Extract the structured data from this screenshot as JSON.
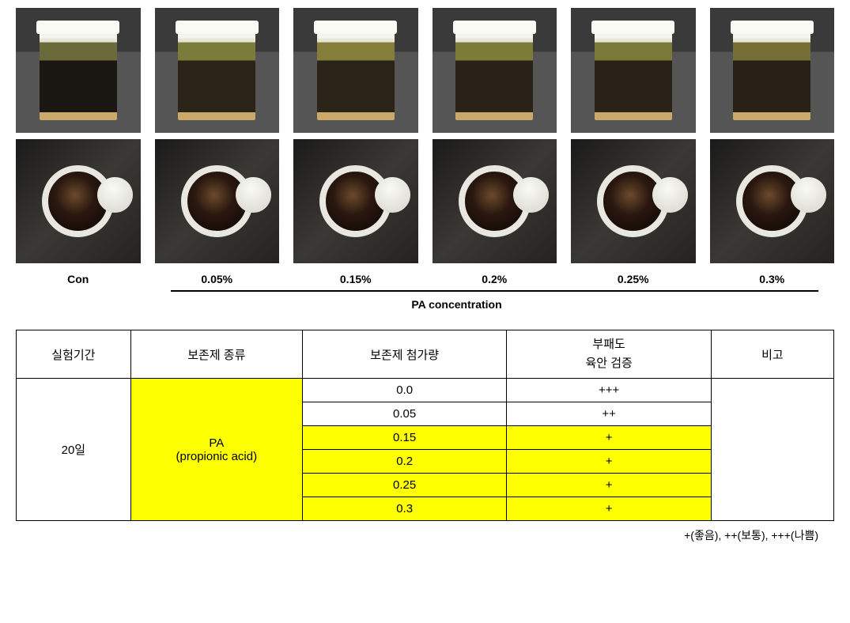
{
  "photo_columns": [
    {
      "label": "Con",
      "liquid_top": "#6a6a3a",
      "liquid_dark": "#1a1612"
    },
    {
      "label": "0.05%",
      "liquid_top": "#7a7c3a",
      "liquid_dark": "#2a2418"
    },
    {
      "label": "0.15%",
      "liquid_top": "#847e3a",
      "liquid_dark": "#2a2418"
    },
    {
      "label": "0.2%",
      "liquid_top": "#7e7a38",
      "liquid_dark": "#2a2218"
    },
    {
      "label": "0.25%",
      "liquid_top": "#7c783a",
      "liquid_dark": "#2a2218"
    },
    {
      "label": "0.3%",
      "liquid_top": "#766e34",
      "liquid_dark": "#282016"
    }
  ],
  "axis_caption": "PA concentration",
  "table": {
    "headers": {
      "period": "실험기간",
      "preservative_type": "보존제 종류",
      "preservative_amount": "보존제 첨가량",
      "decay_header_line1": "부패도",
      "decay_header_line2": "육안 검증",
      "remarks": "비고"
    },
    "period_value": "20일",
    "preservative_value_line1": "PA",
    "preservative_value_line2": "(propionic acid)",
    "rows": [
      {
        "amount": "0.0",
        "decay": "+++",
        "highlight": false
      },
      {
        "amount": "0.05",
        "decay": "++",
        "highlight": false
      },
      {
        "amount": "0.15",
        "decay": "+",
        "highlight": true
      },
      {
        "amount": "0.2",
        "decay": "+",
        "highlight": true
      },
      {
        "amount": "0.25",
        "decay": "+",
        "highlight": true
      },
      {
        "amount": "0.3",
        "decay": "+",
        "highlight": true
      }
    ],
    "remarks_value": ""
  },
  "legend": "+(좋음), ++(보통), +++(나쁨)",
  "colors": {
    "highlight": "#feff00",
    "border": "#000000",
    "background": "#ffffff"
  }
}
